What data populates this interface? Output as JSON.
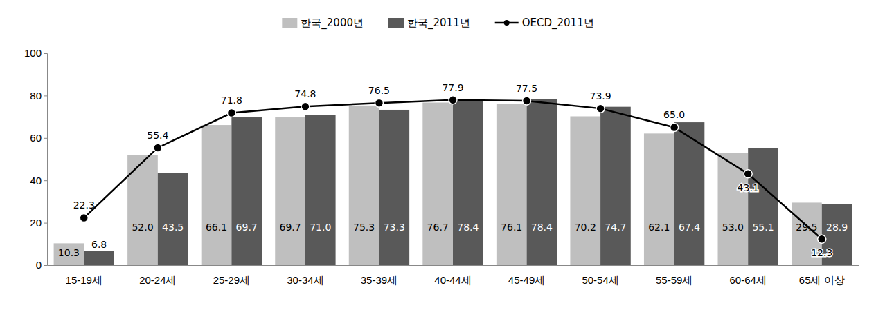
{
  "chart_data": {
    "type": "bar",
    "categories": [
      "15-19세",
      "20-24세",
      "25-29세",
      "30-34세",
      "35-39세",
      "40-44세",
      "45-49세",
      "50-54세",
      "55-59세",
      "60-64세",
      "65세 이상"
    ],
    "series": [
      {
        "name": "한국_2000년",
        "type": "bar",
        "color": "#bfbfbf",
        "values": [
          10.3,
          52.0,
          66.1,
          69.7,
          75.3,
          76.7,
          76.1,
          70.2,
          62.1,
          53.0,
          29.5
        ],
        "value_labels": [
          "10.3",
          "52.0",
          "66.1",
          "69.7",
          "75.3",
          "76.7",
          "76.1",
          "70.2",
          "62.1",
          "53.0",
          "29.5"
        ]
      },
      {
        "name": "한국_2011년",
        "type": "bar",
        "color": "#595959",
        "values": [
          6.8,
          43.5,
          69.7,
          71.0,
          73.3,
          78.4,
          78.4,
          74.7,
          67.4,
          55.1,
          28.9
        ],
        "value_labels": [
          "6.8",
          "43.5",
          "69.7",
          "71.0",
          "73.3",
          "78.4",
          "78.4",
          "74.7",
          "67.4",
          "55.1",
          "28.9"
        ]
      },
      {
        "name": "OECD_2011년",
        "type": "line",
        "color": "#000000",
        "marker": "circle",
        "line_style": "solid",
        "values": [
          22.3,
          55.4,
          71.8,
          74.8,
          76.5,
          77.9,
          77.5,
          73.9,
          65.0,
          43.1,
          12.3
        ],
        "value_labels": [
          "22.3",
          "55.4",
          "71.8",
          "74.8",
          "76.5",
          "77.9",
          "77.5",
          "73.9",
          "65.0",
          "43.1",
          "12.3"
        ]
      }
    ],
    "ylim": [
      0,
      100
    ],
    "yticks": [
      0,
      20,
      40,
      60,
      80,
      100
    ],
    "grid": false,
    "legend": "top",
    "data_labels": true
  }
}
